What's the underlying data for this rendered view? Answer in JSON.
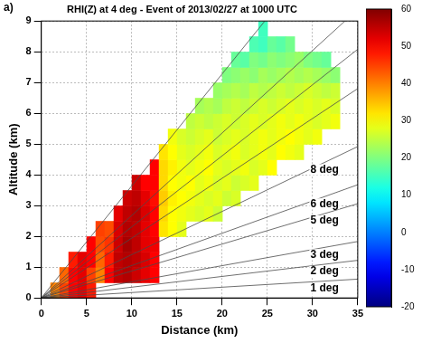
{
  "chart_data": {
    "type": "heatmap",
    "panel_label": "a)",
    "title": "RHI(Z) at 4 deg - Event of 2013/02/27 at 1000 UTC",
    "x_label": "Distance (km)",
    "y_label": "Altitude (km)",
    "xlim": [
      0,
      35
    ],
    "xticks": [
      0,
      5,
      10,
      15,
      20,
      25,
      30,
      35
    ],
    "ylim": [
      0,
      9
    ],
    "yticks": [
      0,
      1,
      2,
      3,
      4,
      5,
      6,
      7,
      8,
      9
    ],
    "grid": true,
    "elevation_lines": [
      {
        "angle": 1,
        "label": "1 deg"
      },
      {
        "angle": 2,
        "label": "2 deg"
      },
      {
        "angle": 3,
        "label": "3 deg"
      },
      {
        "angle": 5,
        "label": "5 deg"
      },
      {
        "angle": 6,
        "label": "6 deg"
      },
      {
        "angle": 8,
        "label": "8 deg"
      },
      {
        "angle": 11
      },
      {
        "angle": 13
      },
      {
        "angle": 15
      },
      {
        "angle": 20
      }
    ],
    "cell_x": [
      0.5,
      1.5,
      2.5,
      3.5,
      4.5,
      5.5,
      6.5,
      7.5,
      8.5,
      9.5,
      10.5,
      11.5,
      12.5,
      13.5,
      14.5,
      15.5,
      16.5,
      17.5,
      18.5,
      19.5,
      20.5,
      21.5,
      22.5,
      23.5,
      24.5,
      25.5,
      26.5,
      27.5,
      28.5,
      29.5,
      30.5,
      31.5,
      32.5
    ],
    "cell_y": [
      0.25,
      0.75,
      1.25,
      1.75,
      2.25,
      2.75,
      3.25,
      3.75,
      4.25,
      4.75,
      5.25,
      5.75,
      6.25,
      6.75,
      7.25,
      7.75,
      8.25,
      8.75
    ],
    "cells": [
      [
        null,
        40,
        45,
        50,
        52,
        48,
        null,
        null,
        null,
        null,
        null,
        null,
        null,
        null,
        null,
        null,
        null,
        null,
        null,
        null,
        null,
        null,
        null,
        null,
        null,
        null,
        null,
        null,
        null,
        null,
        null,
        null,
        null
      ],
      [
        null,
        null,
        42,
        50,
        52,
        45,
        40,
        50,
        55,
        56,
        54,
        52,
        50,
        null,
        null,
        null,
        null,
        null,
        null,
        null,
        null,
        null,
        null,
        null,
        null,
        null,
        null,
        null,
        null,
        null,
        null,
        null,
        null
      ],
      [
        null,
        null,
        null,
        48,
        52,
        50,
        42,
        48,
        55,
        56,
        55,
        53,
        50,
        null,
        null,
        null,
        null,
        null,
        null,
        null,
        null,
        null,
        null,
        null,
        null,
        null,
        null,
        null,
        null,
        null,
        null,
        null,
        null
      ],
      [
        null,
        null,
        null,
        null,
        null,
        50,
        44,
        46,
        54,
        57,
        55,
        52,
        51,
        null,
        null,
        null,
        null,
        null,
        null,
        null,
        null,
        null,
        null,
        null,
        null,
        null,
        null,
        null,
        null,
        null,
        null,
        null,
        null
      ],
      [
        null,
        null,
        null,
        null,
        null,
        null,
        45,
        44,
        53,
        56,
        55,
        52,
        50,
        32,
        30,
        28,
        null,
        null,
        null,
        null,
        null,
        null,
        null,
        null,
        null,
        null,
        null,
        null,
        null,
        null,
        null,
        null,
        null
      ],
      [
        null,
        null,
        null,
        null,
        null,
        null,
        null,
        null,
        52,
        55,
        56,
        53,
        50,
        33,
        30,
        29,
        28,
        27,
        28,
        26,
        null,
        null,
        null,
        null,
        null,
        null,
        null,
        null,
        null,
        null,
        null,
        null,
        null
      ],
      [
        null,
        null,
        null,
        null,
        null,
        null,
        null,
        null,
        null,
        54,
        55,
        52,
        49,
        34,
        31,
        30,
        29,
        28,
        27,
        28,
        26,
        27,
        null,
        null,
        null,
        null,
        null,
        null,
        null,
        null,
        null,
        null,
        null
      ],
      [
        null,
        null,
        null,
        null,
        null,
        null,
        null,
        null,
        null,
        null,
        54,
        50,
        50,
        33,
        30,
        29,
        30,
        28,
        29,
        27,
        28,
        26,
        27,
        28,
        null,
        null,
        null,
        null,
        null,
        null,
        null,
        null,
        null
      ],
      [
        null,
        null,
        null,
        null,
        null,
        null,
        null,
        null,
        null,
        null,
        null,
        null,
        50,
        33,
        31,
        29,
        28,
        29,
        30,
        28,
        27,
        28,
        29,
        27,
        28,
        30,
        null,
        null,
        null,
        null,
        null,
        null,
        null
      ],
      [
        null,
        null,
        null,
        null,
        null,
        null,
        null,
        null,
        null,
        null,
        null,
        null,
        null,
        32,
        30,
        28,
        27,
        28,
        29,
        27,
        28,
        29,
        27,
        28,
        29,
        28,
        30,
        29,
        28,
        null,
        null,
        null,
        null
      ],
      [
        null,
        null,
        null,
        null,
        null,
        null,
        null,
        null,
        null,
        null,
        null,
        null,
        null,
        null,
        29,
        27,
        26,
        27,
        28,
        26,
        27,
        28,
        27,
        28,
        29,
        28,
        29,
        30,
        29,
        28,
        29,
        null,
        null
      ],
      [
        null,
        null,
        null,
        null,
        null,
        null,
        null,
        null,
        null,
        null,
        null,
        null,
        null,
        null,
        null,
        null,
        25,
        26,
        25,
        26,
        27,
        26,
        27,
        28,
        27,
        28,
        29,
        28,
        29,
        28,
        27,
        28,
        29
      ],
      [
        null,
        null,
        null,
        null,
        null,
        null,
        null,
        null,
        null,
        null,
        null,
        null,
        null,
        null,
        null,
        null,
        null,
        23,
        24,
        23,
        25,
        26,
        25,
        26,
        27,
        26,
        27,
        28,
        27,
        28,
        27,
        28,
        27
      ],
      [
        null,
        null,
        null,
        null,
        null,
        null,
        null,
        null,
        null,
        null,
        null,
        null,
        null,
        null,
        null,
        null,
        null,
        null,
        null,
        22,
        23,
        24,
        23,
        25,
        24,
        25,
        26,
        25,
        26,
        27,
        26,
        25,
        26
      ],
      [
        null,
        null,
        null,
        null,
        null,
        null,
        null,
        null,
        null,
        null,
        null,
        null,
        null,
        null,
        null,
        null,
        null,
        null,
        null,
        null,
        20,
        21,
        22,
        21,
        23,
        22,
        23,
        24,
        23,
        24,
        23,
        22,
        21
      ],
      [
        null,
        null,
        null,
        null,
        null,
        null,
        null,
        null,
        null,
        null,
        null,
        null,
        null,
        null,
        null,
        null,
        null,
        null,
        null,
        null,
        null,
        18,
        17,
        20,
        19,
        21,
        20,
        21,
        22,
        20,
        19,
        18,
        null
      ],
      [
        null,
        null,
        null,
        null,
        null,
        null,
        null,
        null,
        null,
        null,
        null,
        null,
        null,
        null,
        null,
        null,
        null,
        null,
        null,
        null,
        null,
        null,
        null,
        16,
        15,
        18,
        17,
        19,
        null,
        null,
        null,
        null,
        null
      ],
      [
        null,
        null,
        null,
        null,
        null,
        null,
        null,
        null,
        null,
        null,
        null,
        null,
        null,
        null,
        null,
        null,
        null,
        null,
        null,
        null,
        null,
        null,
        null,
        null,
        15,
        null,
        null,
        null,
        null,
        null,
        null,
        null,
        null
      ]
    ],
    "colorbar": {
      "lim": [
        -20,
        60
      ],
      "ticks": [
        -20,
        -10,
        0,
        10,
        20,
        30,
        40,
        50,
        60
      ]
    }
  }
}
